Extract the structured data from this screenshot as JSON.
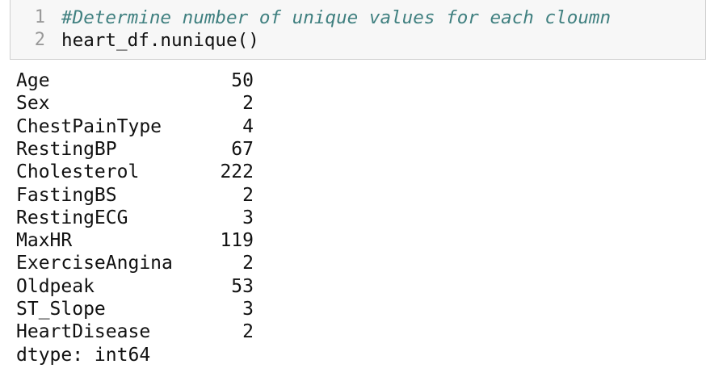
{
  "code_cell": {
    "line_numbers": [
      "1",
      "2"
    ],
    "lines": [
      "#Determine number of unique values for each cloumn",
      "heart_df.nunique()"
    ]
  },
  "output": {
    "rows": [
      {
        "name": "Age",
        "value": 50
      },
      {
        "name": "Sex",
        "value": 2
      },
      {
        "name": "ChestPainType",
        "value": 4
      },
      {
        "name": "RestingBP",
        "value": 67
      },
      {
        "name": "Cholesterol",
        "value": 222
      },
      {
        "name": "FastingBS",
        "value": 2
      },
      {
        "name": "RestingECG",
        "value": 3
      },
      {
        "name": "MaxHR",
        "value": 119
      },
      {
        "name": "ExerciseAngina",
        "value": 2
      },
      {
        "name": "Oldpeak",
        "value": 53
      },
      {
        "name": "ST_Slope",
        "value": 3
      },
      {
        "name": "HeartDisease",
        "value": 2
      }
    ],
    "dtype": "dtype: int64"
  }
}
